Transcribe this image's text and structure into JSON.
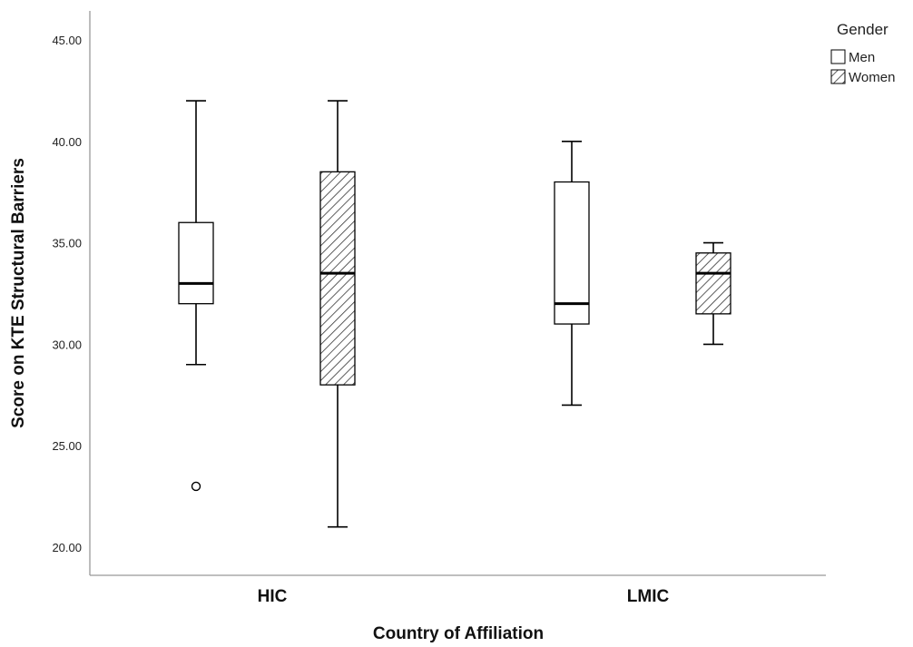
{
  "chart_data": {
    "type": "boxplot",
    "xlabel": "Country of Affiliation",
    "ylabel": "Score on KTE Structural Barriers",
    "ylim": [
      20,
      45
    ],
    "yticks": [
      "20.00",
      "25.00",
      "30.00",
      "35.00",
      "40.00",
      "45.00"
    ],
    "categories": [
      "HIC",
      "LMIC"
    ],
    "legend": {
      "title": "Gender",
      "position": "top-right",
      "entries": [
        {
          "name": "Men",
          "fill": "plain"
        },
        {
          "name": "Women",
          "fill": "hatched"
        }
      ]
    },
    "series": [
      {
        "name": "Men",
        "boxes": [
          {
            "category": "HIC",
            "whisker_low": 29,
            "q1": 32,
            "median": 33,
            "q3": 36,
            "whisker_high": 42,
            "outliers": [
              23
            ]
          },
          {
            "category": "LMIC",
            "whisker_low": 27,
            "q1": 31,
            "median": 32,
            "q3": 38,
            "whisker_high": 40,
            "outliers": []
          }
        ]
      },
      {
        "name": "Women",
        "boxes": [
          {
            "category": "HIC",
            "whisker_low": 21,
            "q1": 28,
            "median": 33.5,
            "q3": 38.5,
            "whisker_high": 42,
            "outliers": []
          },
          {
            "category": "LMIC",
            "whisker_low": 30,
            "q1": 31.5,
            "median": 33.5,
            "q3": 34.5,
            "whisker_high": 35,
            "outliers": []
          }
        ]
      }
    ],
    "grid": false,
    "colors": {
      "box_stroke": "#000000",
      "axis": "#999999",
      "hatch": "#333333"
    }
  }
}
